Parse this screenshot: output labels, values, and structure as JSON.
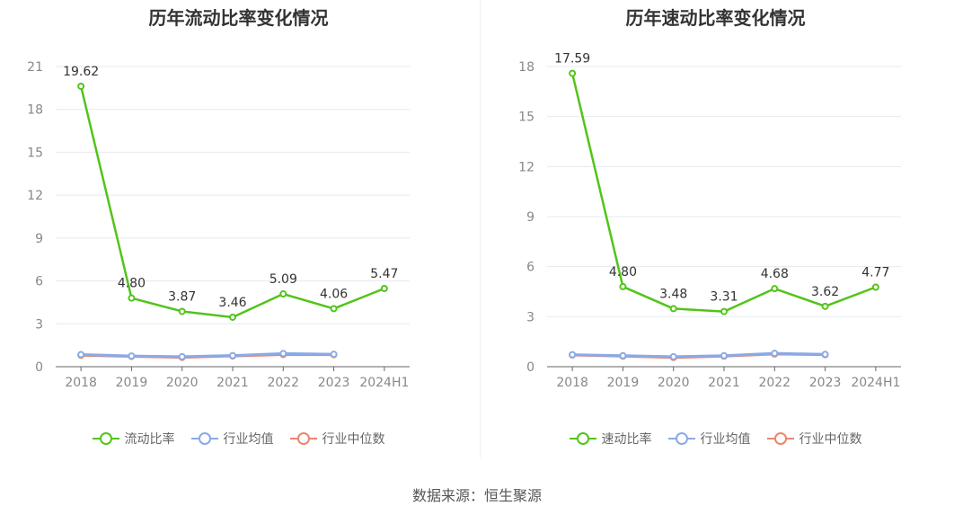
{
  "chart_data": [
    {
      "type": "line",
      "title": "历年流动比率变化情况",
      "categories": [
        "2018",
        "2019",
        "2020",
        "2021",
        "2022",
        "2023",
        "2024H1"
      ],
      "ylim": [
        0,
        21
      ],
      "yticks": [
        0,
        3,
        6,
        9,
        12,
        15,
        18,
        21
      ],
      "grid": true,
      "legend_position": "bottom",
      "series": [
        {
          "name": "流动比率",
          "color": "#52c41a",
          "labels": true,
          "values": [
            19.62,
            4.8,
            3.87,
            3.46,
            5.09,
            4.06,
            5.47
          ]
        },
        {
          "name": "行业均值",
          "color": "#8ba9e6",
          "labels": false,
          "values": [
            0.85,
            0.75,
            0.7,
            0.78,
            0.92,
            0.87,
            null
          ]
        },
        {
          "name": "行业中位数",
          "color": "#e8876b",
          "labels": false,
          "values": [
            0.8,
            0.72,
            0.65,
            0.75,
            0.85,
            0.84,
            null
          ]
        }
      ]
    },
    {
      "type": "line",
      "title": "历年速动比率变化情况",
      "categories": [
        "2018",
        "2019",
        "2020",
        "2021",
        "2022",
        "2023",
        "2024H1"
      ],
      "ylim": [
        0,
        18
      ],
      "yticks": [
        0,
        3,
        6,
        9,
        12,
        15,
        18
      ],
      "grid": true,
      "legend_position": "bottom",
      "series": [
        {
          "name": "速动比率",
          "color": "#52c41a",
          "labels": true,
          "values": [
            17.59,
            4.8,
            3.48,
            3.31,
            4.68,
            3.62,
            4.77
          ]
        },
        {
          "name": "行业均值",
          "color": "#8ba9e6",
          "labels": false,
          "values": [
            0.72,
            0.66,
            0.6,
            0.66,
            0.8,
            0.74,
            null
          ]
        },
        {
          "name": "行业中位数",
          "color": "#e8876b",
          "labels": false,
          "values": [
            0.7,
            0.63,
            0.55,
            0.63,
            0.76,
            0.72,
            null
          ]
        }
      ]
    }
  ],
  "source": "数据来源：恒生聚源"
}
